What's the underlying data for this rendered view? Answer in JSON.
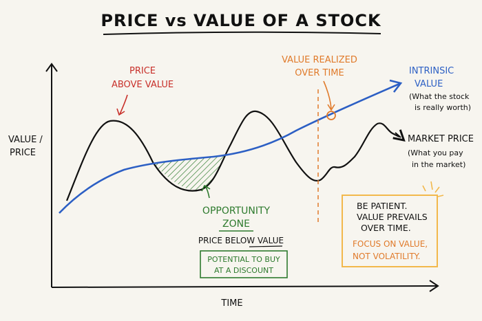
{
  "title": "PRICE vs VALUE OF A STOCK",
  "axes": {
    "y_label_line1": "VALUE /",
    "y_label_line2": "PRICE",
    "x_label": "TIME"
  },
  "labels": {
    "price_above_line1": "PRICE",
    "price_above_line2": "ABOVE VALUE",
    "value_realized_line1": "VALUE REALIZED",
    "value_realized_line2": "OVER TIME",
    "intrinsic_line1": "INTRINSIC",
    "intrinsic_line2": "VALUE",
    "intrinsic_sub1": "(What the stock",
    "intrinsic_sub2": "is really worth)",
    "market_line1": "MARKET PRICE",
    "market_sub1": "(What you pay",
    "market_sub2": "in the market)",
    "opportunity_line1": "OPPORTUNITY",
    "opportunity_line2": "ZONE",
    "price_below": "PRICE BELOW VALUE",
    "potential_line1": "POTENTIAL TO BUY",
    "potential_line2": "AT A DISCOUNT",
    "note_line1": "BE PATIENT.",
    "note_line2": "VALUE PREVAILS",
    "note_line3": "OVER TIME.",
    "note_line4": "FOCUS ON VALUE,",
    "note_line5": "NOT VOLATILITY."
  },
  "colors": {
    "background": "#f7f5ef",
    "ink": "#111111",
    "value_line": "#2c5fc4",
    "price_above": "#c8302a",
    "value_realized": "#e07a2a",
    "opportunity": "#2d7a2d",
    "note_border": "#f2b84b",
    "note_accent": "#e07a2a"
  }
}
